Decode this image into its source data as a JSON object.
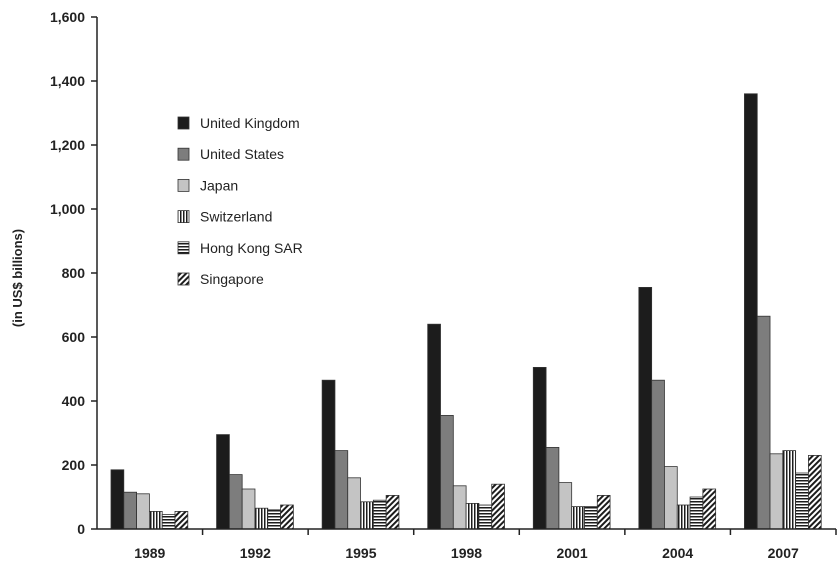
{
  "chart_data": {
    "type": "bar",
    "ylabel": "(in US$ billions)",
    "ylim": [
      0,
      1600
    ],
    "yticks": [
      0,
      200,
      400,
      600,
      800,
      1000,
      1200,
      1400,
      1600
    ],
    "ytick_labels": [
      "0",
      "200",
      "400",
      "600",
      "800",
      "1,000",
      "1,200",
      "1,400",
      "1,600"
    ],
    "categories": [
      "1989",
      "1992",
      "1995",
      "1998",
      "2001",
      "2004",
      "2007"
    ],
    "grid": false,
    "legend_position": "top-left",
    "series": [
      {
        "name": "United Kingdom",
        "fill": "solid-black",
        "color": "#1c1c1c",
        "values": [
          185,
          295,
          465,
          640,
          505,
          755,
          1360
        ]
      },
      {
        "name": "United States",
        "fill": "solid-dark-gray",
        "color": "#7d7d7d",
        "values": [
          115,
          170,
          245,
          355,
          255,
          465,
          665
        ]
      },
      {
        "name": "Japan",
        "fill": "solid-light-gray",
        "color": "#c4c4c4",
        "values": [
          110,
          125,
          160,
          135,
          145,
          195,
          235
        ]
      },
      {
        "name": "Switzerland",
        "fill": "vertical-stripes",
        "color": "#1c1c1c",
        "values": [
          55,
          65,
          85,
          80,
          70,
          75,
          245
        ]
      },
      {
        "name": "Hong Kong SAR",
        "fill": "horizontal-stripes",
        "color": "#1c1c1c",
        "values": [
          45,
          60,
          90,
          75,
          70,
          100,
          175
        ]
      },
      {
        "name": "Singapore",
        "fill": "diagonal-hatch",
        "color": "#1c1c1c",
        "values": [
          55,
          75,
          105,
          140,
          105,
          125,
          230
        ]
      }
    ]
  }
}
